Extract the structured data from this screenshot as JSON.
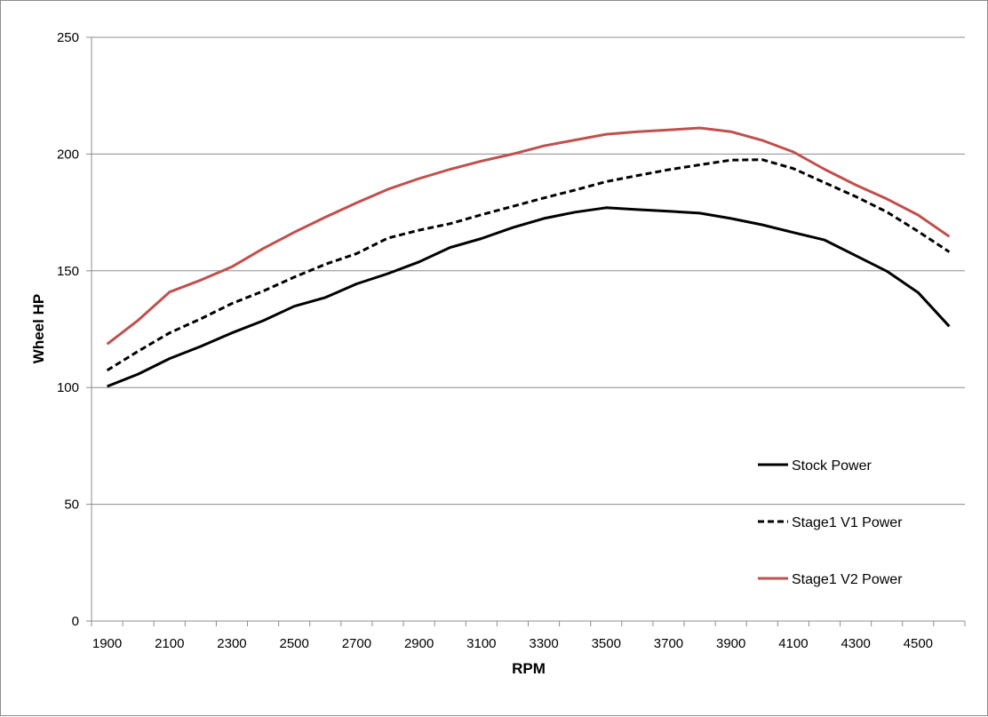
{
  "chart_data": {
    "type": "line",
    "title": "",
    "xlabel": "RPM",
    "ylabel": "Wheel HP",
    "ylim": [
      0,
      250
    ],
    "yticks": [
      0,
      50,
      100,
      150,
      200,
      250
    ],
    "xlim": [
      1900,
      4600
    ],
    "xticks": [
      1900,
      2100,
      2300,
      2500,
      2700,
      2900,
      3100,
      3300,
      3500,
      3700,
      3900,
      4100,
      4300,
      4500
    ],
    "grid": "horizontal",
    "legend_position": "right",
    "x": [
      1900,
      2000,
      2100,
      2200,
      2300,
      2400,
      2500,
      2600,
      2700,
      2800,
      2900,
      3000,
      3100,
      3200,
      3300,
      3400,
      3500,
      3600,
      3700,
      3800,
      3900,
      4000,
      4100,
      4200,
      4300,
      4400,
      4500,
      4600
    ],
    "series": [
      {
        "name": "Stock Power",
        "color": "#000000",
        "dash": "solid",
        "values": [
          100.5,
          105.8,
          112.4,
          117.6,
          123.4,
          128.6,
          134.8,
          138.6,
          144.4,
          148.8,
          153.8,
          160.0,
          163.8,
          168.5,
          172.4,
          175.1,
          177.0,
          176.2,
          175.5,
          174.7,
          172.4,
          169.7,
          166.4,
          163.2,
          156.5,
          149.8,
          140.7,
          126.2
        ]
      },
      {
        "name": "Stage1 V1 Power",
        "color": "#000000",
        "dash": "dashed",
        "values": [
          107.4,
          115.6,
          123.4,
          129.4,
          136.0,
          141.3,
          147.3,
          152.8,
          157.4,
          164.0,
          167.4,
          170.2,
          174.0,
          177.6,
          181.2,
          184.6,
          188.2,
          190.8,
          193.3,
          195.4,
          197.4,
          197.6,
          193.8,
          187.8,
          181.8,
          175.2,
          166.9,
          158.1
        ]
      },
      {
        "name": "Stage1 V2 Power",
        "color": "#c0504d",
        "dash": "solid",
        "values": [
          118.6,
          128.9,
          140.9,
          146.0,
          151.7,
          159.5,
          166.5,
          173.0,
          179.1,
          184.9,
          189.5,
          193.5,
          197.0,
          200.0,
          203.5,
          206.0,
          208.5,
          209.6,
          210.3,
          211.2,
          209.6,
          205.9,
          200.9,
          193.5,
          186.8,
          180.8,
          173.9,
          164.7
        ]
      }
    ]
  }
}
